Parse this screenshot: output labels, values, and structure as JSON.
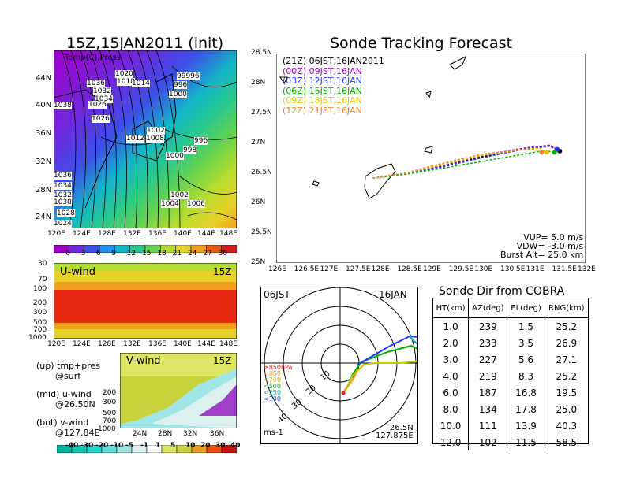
{
  "surface_panel": {
    "title": "15Z,15JAN2011 (init)",
    "overlay_label": "Temp(C),Press",
    "lat_labels": [
      "44N",
      "40N",
      "36N",
      "32N",
      "28N",
      "24N"
    ],
    "lon_labels": [
      "120E",
      "124E",
      "128E",
      "132E",
      "136E",
      "140E",
      "144E",
      "148E"
    ],
    "isobar_labels": [
      "1020",
      "1018",
      "1014",
      "1036",
      "1032",
      "1034",
      "1026",
      "1026",
      "1038",
      "99996",
      "996",
      "1000",
      "1002",
      "1012",
      "1008",
      "996",
      "998",
      "1000",
      "1036",
      "1034",
      "1032",
      "1030",
      "1028",
      "1024",
      "1002",
      "1004",
      "1006"
    ],
    "colorbar_labels": [
      "0",
      "3",
      "6",
      "9",
      "12",
      "15",
      "18",
      "21",
      "24",
      "27",
      "30"
    ],
    "colorbar_colors": [
      "#a000c8",
      "#6e28dc",
      "#3c50e6",
      "#1e8cf0",
      "#14b4c8",
      "#28c88c",
      "#64d250",
      "#b4dc32",
      "#e6d228",
      "#f0a01e",
      "#e65a14",
      "#d21e1e"
    ]
  },
  "u_panel": {
    "title": "U-wind",
    "time": "15Z",
    "p_labels": [
      "30",
      "70",
      "100",
      "200",
      "300",
      "500",
      "700",
      "1000"
    ],
    "lon_labels": [
      "120E",
      "124E",
      "128E",
      "132E",
      "136E",
      "140E",
      "144E",
      "148E"
    ]
  },
  "v_panel": {
    "title": "V-wind",
    "time": "15Z",
    "p_labels": [
      "200",
      "300",
      "500",
      "700",
      "1000"
    ],
    "lat_labels": [
      "24N",
      "28N",
      "32N",
      "36N"
    ],
    "colorbar_labels": [
      "-40",
      "-30",
      "-20",
      "-10",
      "-5",
      "-1",
      "1",
      "5",
      "10",
      "20",
      "30",
      "40"
    ],
    "colorbar_colors": [
      "#00b4a0",
      "#14c8b4",
      "#28d2c8",
      "#64dcdc",
      "#a0e6e6",
      "#dcf0f0",
      "#ffffff",
      "#dce664",
      "#c8d23c",
      "#e6a028",
      "#e65014",
      "#c81414"
    ]
  },
  "legend_notes": [
    {
      "line1": "(up) tmp+pres",
      "line2": "@surf"
    },
    {
      "line1": "(mid) u-wind",
      "line2": "@26.50N"
    },
    {
      "line1": "(bot) v-wind",
      "line2": "@127.84E"
    }
  ],
  "tracking": {
    "title": "Sonde Tracking Forecast",
    "y_labels": [
      "28.5N",
      "28N",
      "27.5N",
      "27N",
      "26.5N",
      "26N",
      "25.5N",
      "25N"
    ],
    "x_labels": [
      "126E",
      "126.5E",
      "127E",
      "127.5E",
      "128E",
      "128.5E",
      "129E",
      "129.5E",
      "130E",
      "130.5E",
      "131E",
      "131.5E",
      "132E"
    ],
    "legend": [
      {
        "text": "(21Z)  06JST,16JAN2011",
        "color": "#000000"
      },
      {
        "text": "(00Z)  09JST,16JAN",
        "color": "#a000c8"
      },
      {
        "text": "(03Z)  12JST,16JAN",
        "color": "#1e3cff"
      },
      {
        "text": "(06Z)  15JST,16JAN",
        "color": "#00b400"
      },
      {
        "text": "(09Z)  18JST,16JAN",
        "color": "#e6c800"
      },
      {
        "text": "(12Z)  21JST,16JAN",
        "color": "#f08228"
      }
    ],
    "params": [
      "VUP= 5.0 m/s",
      "VDW= -3.0 m/s",
      "Burst Alt= 25.0 km"
    ]
  },
  "polar": {
    "time": "06JST",
    "date": "16JAN",
    "ring_labels": [
      "10",
      "20",
      "30",
      "40"
    ],
    "unit": "ms-1",
    "location_lat": "26.5N",
    "location_lon": "127.875E",
    "level_legend": [
      {
        "text": "≥850hPa",
        "color": "#e61e1e"
      },
      {
        "text": "<850",
        "color": "#f0a01e"
      },
      {
        "text": "<700",
        "color": "#c8c800"
      },
      {
        "text": "<500",
        "color": "#00b400"
      },
      {
        "text": "<250",
        "color": "#00b4c8"
      },
      {
        "text": "<100",
        "color": "#1e3cff"
      }
    ]
  },
  "chart_data": [
    {
      "type": "table",
      "title": "Sonde Dir from COBRA",
      "columns": [
        "HT(km)",
        "AZ(deg)",
        "EL(deg)",
        "RNG(km)"
      ],
      "rows": [
        [
          "1.0",
          "239",
          "1.5",
          "25.2"
        ],
        [
          "2.0",
          "233",
          "3.5",
          "26.9"
        ],
        [
          "3.0",
          "227",
          "5.6",
          "27.1"
        ],
        [
          "4.0",
          "219",
          "8.3",
          "25.2"
        ],
        [
          "6.0",
          "187",
          "16.8",
          "19.5"
        ],
        [
          "8.0",
          "134",
          "17.8",
          "25.0"
        ],
        [
          "10.0",
          "111",
          "13.9",
          "40.3"
        ],
        [
          "12.0",
          "102",
          "11.5",
          "58.5"
        ]
      ]
    },
    {
      "type": "line",
      "title": "Sonde Tracking Forecast",
      "xlim": [
        126,
        132
      ],
      "ylim": [
        25,
        28.5
      ],
      "series": [
        {
          "name": "(21Z)  06JST,16JAN2011",
          "color": "#000000",
          "x": [
            127.875,
            128.5,
            129.2,
            130.0,
            130.8,
            131.3,
            131.5
          ],
          "y": [
            26.42,
            26.5,
            26.62,
            26.78,
            26.9,
            26.96,
            26.87
          ]
        },
        {
          "name": "(00Z)  09JST,16JAN",
          "color": "#a000c8",
          "x": [
            127.875,
            128.5,
            129.2,
            130.0,
            130.8,
            131.3,
            131.45
          ],
          "y": [
            26.42,
            26.5,
            26.62,
            26.8,
            26.92,
            26.97,
            26.9
          ]
        },
        {
          "name": "(03Z)  12JST,16JAN",
          "color": "#1e3cff",
          "x": [
            127.875,
            128.5,
            129.2,
            130.0,
            130.8,
            131.3,
            131.45
          ],
          "y": [
            26.42,
            26.49,
            26.6,
            26.76,
            26.9,
            26.95,
            26.9
          ]
        },
        {
          "name": "(06Z)  15JST,16JAN",
          "color": "#00b400",
          "x": [
            127.875,
            128.5,
            129.2,
            130.0,
            130.8,
            131.2,
            131.4
          ],
          "y": [
            26.42,
            26.48,
            26.58,
            26.7,
            26.82,
            26.88,
            26.85
          ]
        },
        {
          "name": "(09Z)  18JST,16JAN",
          "color": "#e6c800",
          "x": [
            127.875,
            128.5,
            129.2,
            130.0,
            130.8,
            131.1,
            131.25
          ],
          "y": [
            26.42,
            26.5,
            26.64,
            26.8,
            26.9,
            26.92,
            26.85
          ]
        },
        {
          "name": "(12Z)  21JST,16JAN",
          "color": "#f08228",
          "x": [
            127.875,
            128.5,
            129.0,
            130.0,
            130.8,
            131.0,
            131.15
          ],
          "y": [
            26.42,
            26.5,
            26.62,
            26.82,
            26.9,
            26.9,
            26.85
          ]
        }
      ]
    }
  ]
}
